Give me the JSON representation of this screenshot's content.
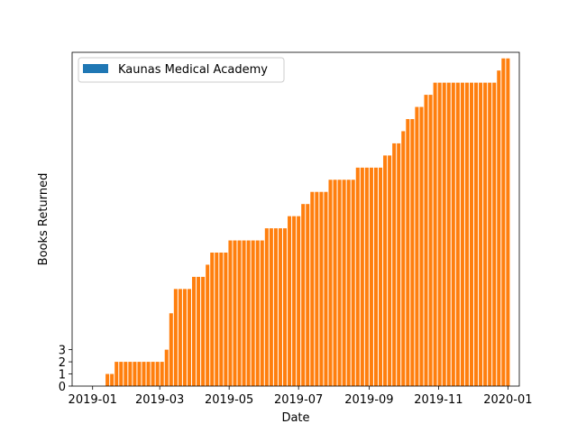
{
  "chart_data": {
    "type": "bar",
    "xlabel": "Date",
    "ylabel": "Books Returned",
    "legend": {
      "entries": [
        "Kaunas Medical Academy"
      ],
      "placement": "top-left"
    },
    "colors": {
      "legend_patch": "#1f77b4",
      "bars": "#ff7f0e"
    },
    "x_tick_labels": [
      "2019-01",
      "2019-03",
      "2019-05",
      "2019-07",
      "2019-09",
      "2019-11",
      "2020-01"
    ],
    "x_tick_dates": [
      "2019-01-01",
      "2019-03-01",
      "2019-05-01",
      "2019-07-01",
      "2019-09-01",
      "2019-11-01",
      "2020-01-01"
    ],
    "xlim": [
      "2018-12-14",
      "2020-01-11"
    ],
    "y_ticks": [
      0,
      1,
      2,
      3
    ],
    "ylim": [
      0,
      27.5
    ],
    "series": [
      {
        "name": "Kaunas Medical Academy",
        "color": "#ff7f0e",
        "x": [
          "2019-01-14",
          "2019-01-18",
          "2019-01-22",
          "2019-01-26",
          "2019-01-30",
          "2019-02-03",
          "2019-02-07",
          "2019-02-11",
          "2019-02-15",
          "2019-02-19",
          "2019-02-23",
          "2019-02-27",
          "2019-03-03",
          "2019-03-07",
          "2019-03-11",
          "2019-03-15",
          "2019-03-19",
          "2019-03-23",
          "2019-03-27",
          "2019-03-31",
          "2019-04-04",
          "2019-04-08",
          "2019-04-12",
          "2019-04-16",
          "2019-04-20",
          "2019-04-24",
          "2019-04-28",
          "2019-05-02",
          "2019-05-06",
          "2019-05-10",
          "2019-05-14",
          "2019-05-18",
          "2019-05-22",
          "2019-05-26",
          "2019-05-30",
          "2019-06-03",
          "2019-06-07",
          "2019-06-11",
          "2019-06-15",
          "2019-06-19",
          "2019-06-23",
          "2019-06-27",
          "2019-07-01",
          "2019-07-05",
          "2019-07-09",
          "2019-07-13",
          "2019-07-17",
          "2019-07-21",
          "2019-07-25",
          "2019-07-29",
          "2019-08-02",
          "2019-08-06",
          "2019-08-10",
          "2019-08-14",
          "2019-08-18",
          "2019-08-22",
          "2019-08-26",
          "2019-08-30",
          "2019-09-03",
          "2019-09-07",
          "2019-09-11",
          "2019-09-15",
          "2019-09-19",
          "2019-09-23",
          "2019-09-27",
          "2019-10-01",
          "2019-10-05",
          "2019-10-09",
          "2019-10-13",
          "2019-10-17",
          "2019-10-21",
          "2019-10-25",
          "2019-10-29",
          "2019-11-02",
          "2019-11-06",
          "2019-11-10",
          "2019-11-14",
          "2019-11-18",
          "2019-11-22",
          "2019-11-26",
          "2019-11-30",
          "2019-12-04",
          "2019-12-08",
          "2019-12-12",
          "2019-12-16",
          "2019-12-20",
          "2019-12-24",
          "2019-12-28",
          "2020-01-01"
        ],
        "values": [
          1,
          1,
          2,
          2,
          2,
          2,
          2,
          2,
          2,
          2,
          2,
          2,
          2,
          3,
          6,
          8,
          8,
          8,
          8,
          9,
          9,
          9,
          10,
          11,
          11,
          11,
          11,
          12,
          12,
          12,
          12,
          12,
          12,
          12,
          12,
          13,
          13,
          13,
          13,
          13,
          14,
          14,
          14,
          15,
          15,
          16,
          16,
          16,
          16,
          17,
          17,
          17,
          17,
          17,
          17,
          18,
          18,
          18,
          18,
          18,
          18,
          19,
          19,
          20,
          20,
          21,
          22,
          22,
          23,
          23,
          24,
          24,
          25,
          25,
          25,
          25,
          25,
          25,
          25,
          25,
          25,
          25,
          25,
          25,
          25,
          25,
          26,
          27,
          27
        ]
      }
    ]
  }
}
